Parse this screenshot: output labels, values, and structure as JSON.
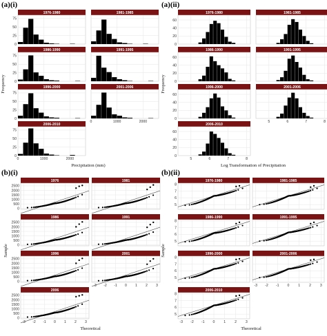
{
  "colors": {
    "strip": "#7a1414",
    "panel_bg": "#ffffff",
    "grid": "#e6e6e6",
    "bar": "#000000",
    "point": "#000000",
    "line": "#555555"
  },
  "chart_data": [
    {
      "panel": "(a)(i)",
      "type": "bar",
      "xlabel": "Precipitation (mm)",
      "ylabel": "Frequency",
      "xlim": [
        0,
        2600
      ],
      "ylim": [
        0,
        85
      ],
      "xticks": [
        "0",
        "1000",
        "2000"
      ],
      "yticks": [
        "0",
        "25",
        "50",
        "75"
      ],
      "bin_width": 200,
      "grid": true,
      "facets": [
        {
          "label": "1976-1980",
          "bins": [
            100,
            300,
            500,
            700,
            900,
            1100,
            1300,
            1500,
            2100
          ],
          "values": [
            6,
            48,
            74,
            28,
            13,
            4,
            2,
            1,
            1
          ]
        },
        {
          "label": "1981-1985",
          "bins": [
            100,
            300,
            500,
            700,
            900,
            1100,
            1300,
            1500,
            2100
          ],
          "values": [
            8,
            40,
            72,
            30,
            15,
            5,
            3,
            1,
            1
          ]
        },
        {
          "label": "1986-1990",
          "bins": [
            100,
            300,
            500,
            700,
            900,
            1100,
            1300,
            1500,
            2300
          ],
          "values": [
            5,
            35,
            76,
            26,
            16,
            6,
            3,
            2,
            1
          ]
        },
        {
          "label": "1991-1995",
          "bins": [
            100,
            300,
            500,
            700,
            900,
            1100,
            1300,
            1500,
            2300
          ],
          "values": [
            10,
            75,
            40,
            27,
            12,
            6,
            3,
            1,
            1
          ]
        },
        {
          "label": "1996-2000",
          "bins": [
            100,
            300,
            500,
            700,
            900,
            1100,
            1300,
            1500,
            2300
          ],
          "values": [
            8,
            42,
            74,
            30,
            17,
            6,
            3,
            2,
            1
          ]
        },
        {
          "label": "2001-2006",
          "bins": [
            100,
            300,
            500,
            700,
            900,
            1100,
            1300,
            1500,
            2300
          ],
          "values": [
            8,
            40,
            76,
            32,
            12,
            8,
            3,
            2,
            1
          ]
        },
        {
          "label": "2006-2010",
          "bins": [
            100,
            300,
            500,
            700,
            900,
            1100,
            1300,
            1500,
            2100
          ],
          "values": [
            5,
            38,
            80,
            36,
            20,
            6,
            3,
            1,
            2
          ]
        }
      ]
    },
    {
      "panel": "(a)(ii)",
      "type": "bar",
      "xlabel": "Log Transformation of Precipitation",
      "ylabel": "Frequency",
      "xlim": [
        4.3,
        8.2
      ],
      "ylim": [
        0,
        72
      ],
      "xticks": [
        "5",
        "6",
        "7",
        "8"
      ],
      "yticks": [
        "0",
        "20",
        "40",
        "60"
      ],
      "bin_width": 0.2,
      "grid": true,
      "facets": [
        {
          "label": "1976-1980",
          "bins": [
            5.5,
            5.7,
            5.9,
            6.1,
            6.3,
            6.5,
            6.7,
            6.9,
            7.1,
            7.3
          ],
          "values": [
            4,
            14,
            30,
            50,
            58,
            52,
            36,
            18,
            6,
            3
          ]
        },
        {
          "label": "1981-1985",
          "bins": [
            5.5,
            5.7,
            5.9,
            6.1,
            6.3,
            6.5,
            6.7,
            6.9,
            7.1,
            7.3
          ],
          "values": [
            3,
            12,
            25,
            48,
            62,
            55,
            36,
            20,
            8,
            2
          ]
        },
        {
          "label": "1986-1990",
          "bins": [
            5.5,
            5.7,
            5.9,
            6.1,
            6.3,
            6.5,
            6.7,
            6.9,
            7.1,
            7.3
          ],
          "values": [
            5,
            14,
            36,
            62,
            50,
            40,
            32,
            22,
            6,
            2
          ]
        },
        {
          "label": "1991-1995",
          "bins": [
            5.5,
            5.7,
            5.9,
            6.1,
            6.3,
            6.5,
            6.7,
            6.9,
            7.1,
            7.3
          ],
          "values": [
            3,
            10,
            26,
            56,
            64,
            48,
            34,
            16,
            5,
            2
          ]
        },
        {
          "label": "1996-2000",
          "bins": [
            5.5,
            5.7,
            5.9,
            6.1,
            6.3,
            6.5,
            6.7,
            6.9,
            7.1,
            7.3
          ],
          "values": [
            4,
            14,
            28,
            50,
            62,
            52,
            30,
            20,
            8,
            2
          ]
        },
        {
          "label": "2001-2006",
          "bins": [
            5.5,
            5.7,
            5.9,
            6.1,
            6.3,
            6.5,
            6.7,
            6.9,
            7.1,
            7.3
          ],
          "values": [
            4,
            12,
            32,
            52,
            64,
            50,
            28,
            14,
            6,
            2
          ]
        },
        {
          "label": "2006-2010",
          "bins": [
            5.5,
            5.7,
            5.9,
            6.1,
            6.3,
            6.5,
            6.7,
            6.9,
            7.1,
            7.3
          ],
          "values": [
            3,
            10,
            30,
            60,
            54,
            44,
            32,
            18,
            6,
            2
          ]
        }
      ]
    },
    {
      "panel": "(b)(i)",
      "type": "scatter",
      "xlabel": "Theoretical",
      "ylabel": "Sample",
      "xlim": [
        -3.3,
        3.3
      ],
      "ylim": [
        -100,
        2800
      ],
      "xticks": [
        "-3",
        "-2",
        "-1",
        "0",
        "1",
        "2",
        "3"
      ],
      "yticks": [
        "0",
        "500",
        "1000",
        "1500",
        "2000",
        "2500"
      ],
      "reference_line": {
        "intercept": 700,
        "slope": 380
      },
      "grid": true,
      "facets": [
        {
          "label": "1976",
          "min": 80,
          "median": 560,
          "tail_high": 1500,
          "outliers": [
            2250,
            2450,
            2550
          ]
        },
        {
          "label": "1981",
          "min": 90,
          "median": 570,
          "tail_high": 1450,
          "outliers": [
            2100,
            2350,
            2600
          ]
        },
        {
          "label": "1986",
          "min": 60,
          "median": 550,
          "tail_high": 1350,
          "outliers": [
            2000,
            2300,
            2550
          ]
        },
        {
          "label": "1991",
          "min": 70,
          "median": 540,
          "tail_high": 1400,
          "outliers": [
            1950,
            2250,
            2500
          ]
        },
        {
          "label": "1996",
          "min": 80,
          "median": 560,
          "tail_high": 1450,
          "outliers": [
            2000,
            2350,
            2550
          ]
        },
        {
          "label": "2001",
          "min": 70,
          "median": 560,
          "tail_high": 1400,
          "outliers": [
            1900,
            2250,
            2500
          ]
        },
        {
          "label": "2006",
          "min": 90,
          "median": 580,
          "tail_high": 1500,
          "outliers": [
            2350,
            2450,
            2550
          ]
        }
      ]
    },
    {
      "panel": "(b)(ii)",
      "type": "scatter",
      "xlabel": "Theoretical",
      "ylabel": "Sample",
      "xlim": [
        -3.3,
        3.3
      ],
      "ylim": [
        4.3,
        8.2
      ],
      "xticks": [
        "-3",
        "-2",
        "-1",
        "0",
        "1",
        "2",
        "3"
      ],
      "yticks": [
        "5",
        "6",
        "7",
        "8"
      ],
      "reference_line": {
        "intercept": 6.3,
        "slope": 0.5
      },
      "grid": true,
      "facets": [
        {
          "label": "1976-1980",
          "min": 4.9,
          "median": 6.3,
          "tail_high": 7.4,
          "outliers": [
            7.7,
            7.8
          ]
        },
        {
          "label": "1981-1985",
          "min": 5.0,
          "median": 6.3,
          "tail_high": 7.4,
          "outliers": [
            7.6,
            7.8
          ]
        },
        {
          "label": "1986-1990",
          "min": 4.9,
          "median": 6.2,
          "tail_high": 7.3,
          "outliers": [
            7.6,
            7.8
          ]
        },
        {
          "label": "1991-1995",
          "min": 5.0,
          "median": 6.3,
          "tail_high": 7.3,
          "outliers": [
            7.6,
            7.8
          ]
        },
        {
          "label": "1996-2000",
          "min": 4.9,
          "median": 6.3,
          "tail_high": 7.4,
          "outliers": [
            7.7,
            7.8
          ]
        },
        {
          "label": "2001-2006",
          "min": 5.0,
          "median": 6.3,
          "tail_high": 7.3,
          "outliers": [
            7.6,
            7.7
          ]
        },
        {
          "label": "2006-2010",
          "min": 4.8,
          "median": 6.3,
          "tail_high": 7.4,
          "outliers": [
            7.7,
            7.8
          ]
        }
      ]
    }
  ]
}
